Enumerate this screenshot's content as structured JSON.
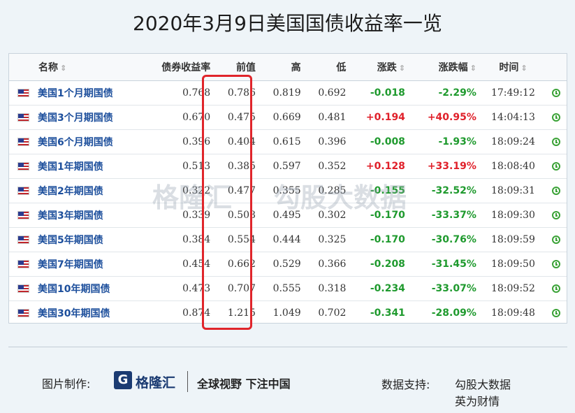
{
  "title": "2020年3月9日美国国债收益率一览",
  "chart_data": {
    "type": "table",
    "columns": [
      "名称",
      "债券收益率",
      "前值",
      "高",
      "低",
      "涨跌",
      "涨跌幅",
      "时间"
    ],
    "sortable_marker": "⇕",
    "rows": [
      {
        "name": "美国1个月期国债",
        "yield": "0.768",
        "prev": "0.786",
        "high": "0.819",
        "low": "0.692",
        "change": "-0.018",
        "pct": "-2.29%",
        "time": "17:49:12",
        "dir": "down"
      },
      {
        "name": "美国3个月期国债",
        "yield": "0.670",
        "prev": "0.475",
        "high": "0.669",
        "low": "0.481",
        "change": "+0.194",
        "pct": "+40.95%",
        "time": "14:04:13",
        "dir": "up"
      },
      {
        "name": "美国6个月期国债",
        "yield": "0.396",
        "prev": "0.404",
        "high": "0.615",
        "low": "0.396",
        "change": "-0.008",
        "pct": "-1.93%",
        "time": "18:09:24",
        "dir": "down"
      },
      {
        "name": "美国1年期国债",
        "yield": "0.513",
        "prev": "0.385",
        "high": "0.597",
        "low": "0.352",
        "change": "+0.128",
        "pct": "+33.19%",
        "time": "18:08:40",
        "dir": "up"
      },
      {
        "name": "美国2年期国债",
        "yield": "0.322",
        "prev": "0.477",
        "high": "0.355",
        "low": "0.285",
        "change": "-0.155",
        "pct": "-32.52%",
        "time": "18:09:31",
        "dir": "down"
      },
      {
        "name": "美国3年期国债",
        "yield": "0.339",
        "prev": "0.508",
        "high": "0.495",
        "low": "0.302",
        "change": "-0.170",
        "pct": "-33.37%",
        "time": "18:09:30",
        "dir": "down"
      },
      {
        "name": "美国5年期国债",
        "yield": "0.384",
        "prev": "0.554",
        "high": "0.444",
        "low": "0.325",
        "change": "-0.170",
        "pct": "-30.76%",
        "time": "18:09:59",
        "dir": "down"
      },
      {
        "name": "美国7年期国债",
        "yield": "0.454",
        "prev": "0.662",
        "high": "0.529",
        "low": "0.366",
        "change": "-0.208",
        "pct": "-31.45%",
        "time": "18:09:50",
        "dir": "down"
      },
      {
        "name": "美国10年期国债",
        "yield": "0.473",
        "prev": "0.707",
        "high": "0.555",
        "low": "0.318",
        "change": "-0.234",
        "pct": "-33.07%",
        "time": "18:09:52",
        "dir": "down"
      },
      {
        "name": "美国30年期国债",
        "yield": "0.874",
        "prev": "1.215",
        "high": "1.049",
        "low": "0.702",
        "change": "-0.341",
        "pct": "-28.09%",
        "time": "18:09:48",
        "dir": "down"
      }
    ],
    "highlighted_column": "债券收益率"
  },
  "watermark": {
    "brand": "格隆汇",
    "partner": "勾股大数据"
  },
  "footer": {
    "made_by_label": "图片制作:",
    "logo_letter": "G",
    "logo_name": "格隆汇",
    "slogan": "全球视野 下注中国",
    "support_label": "数据支持:",
    "support_1": "勾股大数据",
    "support_2": "英为财情"
  },
  "colors": {
    "up": "#e0202a",
    "down": "#1f9a2e",
    "link": "#1d4f9c",
    "highlight": "#e0252b"
  }
}
